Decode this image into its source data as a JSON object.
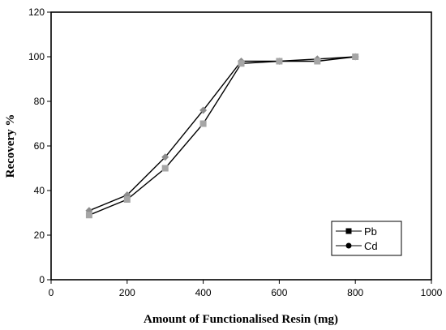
{
  "chart_data": {
    "type": "line",
    "xlabel": "Amount of Functionalised Resin (mg)",
    "ylabel": "Recovery %",
    "xlim": [
      0,
      1000
    ],
    "ylim": [
      0,
      120
    ],
    "x_ticks": [
      0,
      200,
      400,
      600,
      800,
      1000
    ],
    "y_ticks": [
      0,
      20,
      40,
      60,
      80,
      100,
      120
    ],
    "grid": false,
    "legend_position": "bottom-right",
    "x": [
      100,
      200,
      300,
      400,
      500,
      600,
      700,
      800
    ],
    "series": [
      {
        "name": "Pb",
        "marker": "square",
        "line_color": "#000000",
        "marker_color": "#a6a6a6",
        "values": [
          29,
          36,
          50,
          70,
          97,
          98,
          98,
          100
        ]
      },
      {
        "name": "Cd",
        "marker": "diamond",
        "line_color": "#000000",
        "marker_color": "#8c8c8c",
        "values": [
          31,
          38,
          55,
          76,
          98,
          98,
          99,
          100
        ]
      }
    ]
  }
}
